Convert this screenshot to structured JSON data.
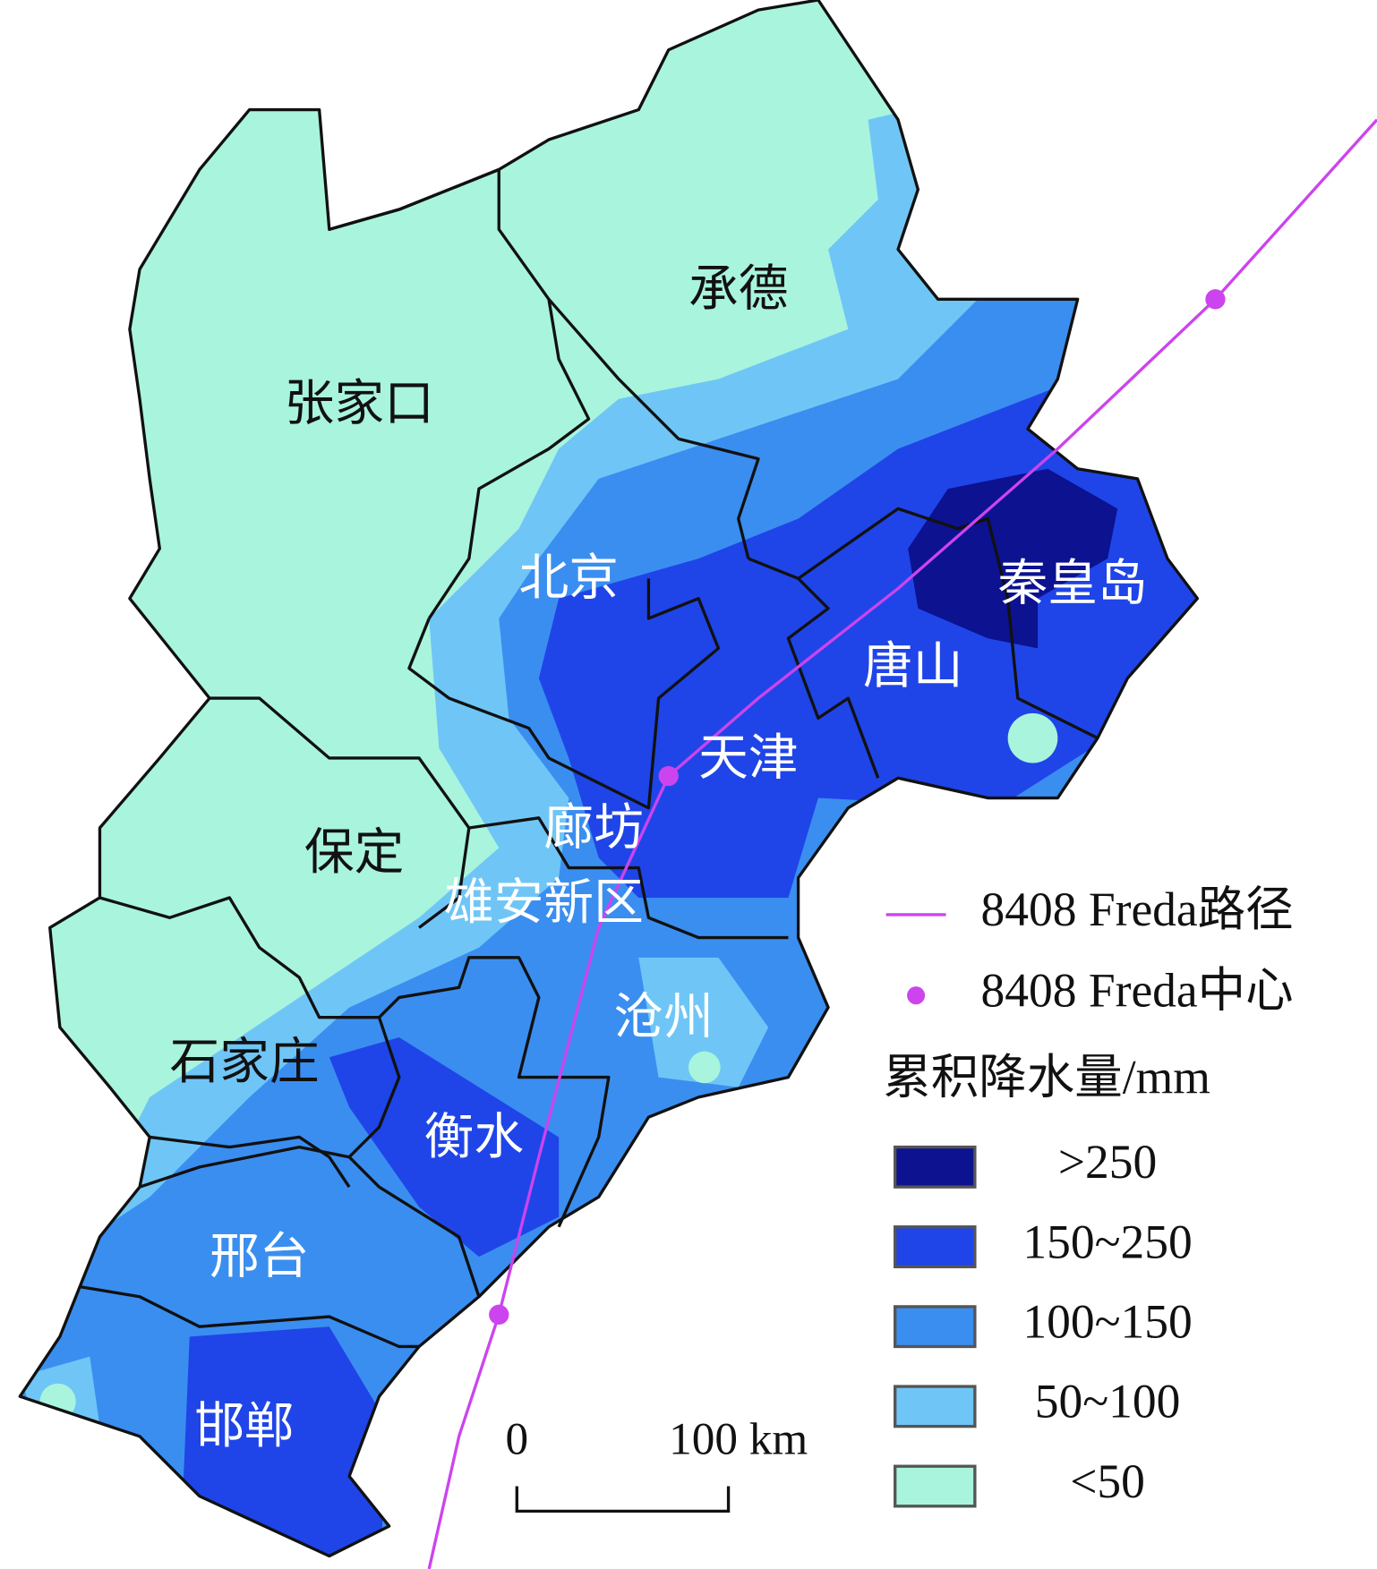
{
  "map": {
    "regions": [
      "张家口",
      "承德",
      "北京",
      "秦皇岛",
      "唐山",
      "天津",
      "保定",
      "廊坊",
      "雄安新区",
      "沧州",
      "石家庄",
      "衡水",
      "邢台",
      "邯郸"
    ],
    "legend": {
      "track": "8408 Freda路径",
      "center": "8408 Freda中心",
      "title": "累积降水量/mm",
      "classes": [
        {
          "label": ">250",
          "color": "#0c1290"
        },
        {
          "label": "150~250",
          "color": "#1f45e8"
        },
        {
          "label": "100~150",
          "color": "#3a8ef0"
        },
        {
          "label": "50~100",
          "color": "#6fc6f6"
        },
        {
          "label": "<50",
          "color": "#a9f4dd"
        }
      ],
      "track_color": "#cc44ee"
    },
    "scale_bar": {
      "start": "0",
      "end": "100 km"
    }
  }
}
